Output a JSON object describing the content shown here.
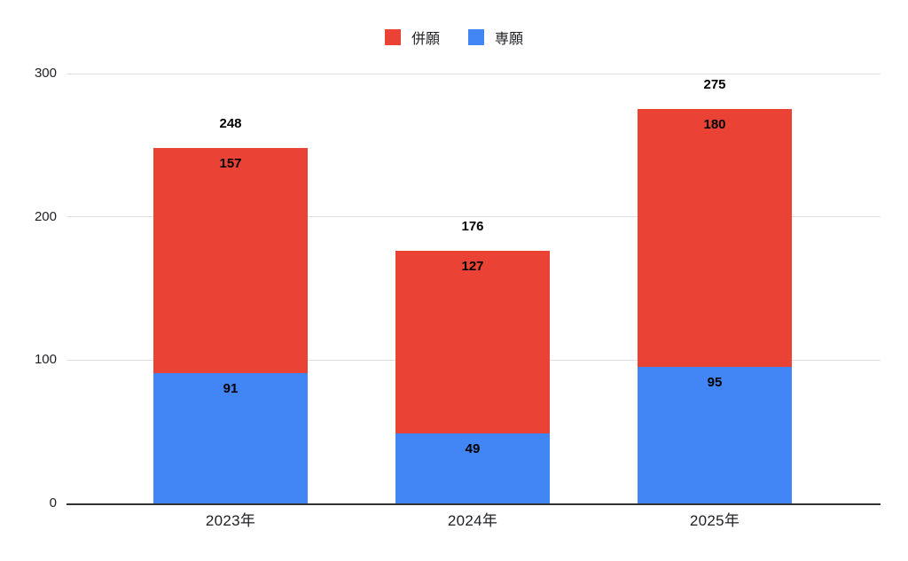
{
  "chart_data": {
    "type": "bar",
    "stacked": true,
    "categories": [
      "2023年",
      "2024年",
      "2025年"
    ],
    "series": [
      {
        "name": "併願",
        "color": "#EA4335",
        "values": [
          157,
          127,
          180
        ]
      },
      {
        "name": "専願",
        "color": "#4285F4",
        "values": [
          91,
          49,
          95
        ]
      }
    ],
    "totals": [
      248,
      176,
      275
    ],
    "ylim": [
      0,
      300
    ],
    "yticks": [
      0,
      100,
      200,
      300
    ],
    "grid": true,
    "legend_position": "top"
  },
  "legend": {
    "items": [
      {
        "label": "併願",
        "color": "#EA4335"
      },
      {
        "label": "専願",
        "color": "#4285F4"
      }
    ]
  },
  "colors": {
    "background": "#ffffff",
    "gridline": "#e0e0e0",
    "baseline": "#333333",
    "label": "#000000",
    "tick_text": "#202124"
  }
}
